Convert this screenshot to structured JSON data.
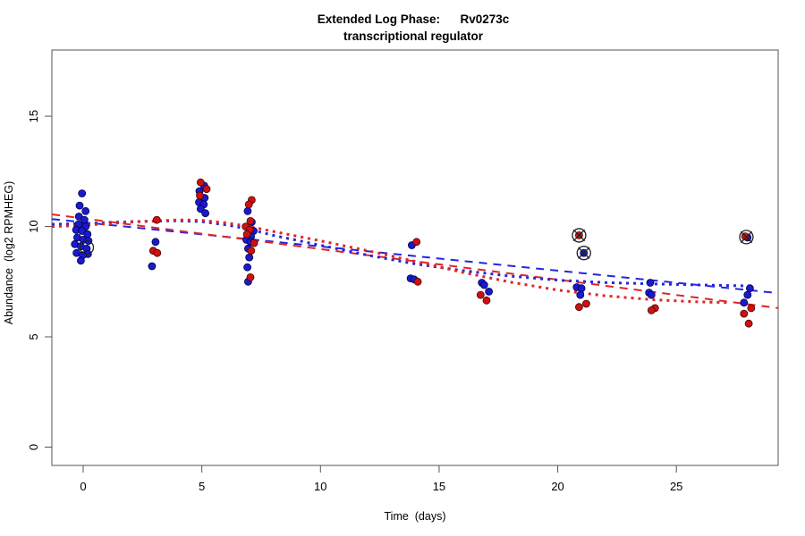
{
  "title": {
    "line1": "Extended Log Phase:      Rv0273c",
    "line2": "transcriptional regulator"
  },
  "chart_data": {
    "type": "scatter",
    "xlabel": "Time  (days)",
    "ylabel": "Abundance  (log2 RPMHEG)",
    "x_ticks": [
      0,
      5,
      10,
      15,
      20,
      25
    ],
    "y_ticks": [
      0,
      5,
      10,
      15
    ],
    "xlim": [
      -1.32,
      29.29
    ],
    "ylim": [
      -0.83,
      18.0
    ],
    "grid": false,
    "legend": "none",
    "colors": {
      "blue_point_fill": "#1a1acd",
      "blue_point_edge": "#00004d",
      "red_point_fill": "#cc1111",
      "red_point_edge": "#4d0000",
      "blue_line": "#2626dd",
      "red_line": "#e02626",
      "box_stroke": "#555555",
      "marker_stroke": "#222222"
    },
    "series": [
      {
        "name": "replicate-blue",
        "marker": "filled-circle",
        "color_key": "blue",
        "points": [
          [
            -0.05,
            11.5
          ],
          [
            -0.15,
            10.95
          ],
          [
            0.1,
            10.7
          ],
          [
            -0.18,
            10.45
          ],
          [
            0.05,
            10.3
          ],
          [
            -0.2,
            10.1
          ],
          [
            0.1,
            10.0
          ],
          [
            -0.3,
            9.85
          ],
          [
            -0.05,
            9.8
          ],
          [
            0.18,
            9.65
          ],
          [
            -0.25,
            9.5
          ],
          [
            0.0,
            9.4
          ],
          [
            0.22,
            9.35
          ],
          [
            -0.35,
            9.2
          ],
          [
            -0.1,
            9.1
          ],
          [
            0.15,
            9.0
          ],
          [
            -0.28,
            8.8
          ],
          [
            0.2,
            8.75
          ],
          [
            -0.02,
            8.7
          ],
          [
            -0.1,
            8.45
          ],
          [
            3.05,
            9.3
          ],
          [
            2.9,
            8.2
          ],
          [
            5.1,
            11.85
          ],
          [
            4.9,
            11.6
          ],
          [
            5.12,
            11.3
          ],
          [
            4.88,
            11.1
          ],
          [
            5.08,
            11.0
          ],
          [
            4.95,
            10.8
          ],
          [
            5.15,
            10.6
          ],
          [
            6.93,
            10.7
          ],
          [
            7.1,
            10.2
          ],
          [
            7.18,
            9.8
          ],
          [
            7.07,
            9.55
          ],
          [
            6.88,
            9.4
          ],
          [
            7.05,
            9.3
          ],
          [
            6.95,
            9.0
          ],
          [
            7.0,
            8.6
          ],
          [
            6.92,
            8.15
          ],
          [
            6.95,
            7.5
          ],
          [
            13.85,
            9.15
          ],
          [
            13.8,
            7.65
          ],
          [
            13.95,
            7.6
          ],
          [
            16.8,
            7.45
          ],
          [
            16.9,
            7.35
          ],
          [
            17.1,
            7.05
          ],
          [
            20.8,
            7.25
          ],
          [
            21.0,
            7.2
          ],
          [
            20.95,
            6.9
          ],
          [
            21.1,
            8.8
          ],
          [
            23.9,
            7.45
          ],
          [
            23.85,
            7.0
          ],
          [
            23.95,
            6.9
          ],
          [
            28.1,
            7.2
          ],
          [
            28.0,
            6.9
          ],
          [
            27.85,
            6.55
          ],
          [
            28.0,
            9.5
          ]
        ]
      },
      {
        "name": "replicate-red",
        "marker": "filled-circle",
        "color_key": "red",
        "points": [
          [
            3.1,
            10.3
          ],
          [
            2.95,
            8.9
          ],
          [
            3.12,
            8.8
          ],
          [
            4.95,
            12.0
          ],
          [
            5.2,
            11.7
          ],
          [
            4.92,
            11.4
          ],
          [
            7.1,
            11.2
          ],
          [
            6.98,
            11.0
          ],
          [
            7.05,
            10.25
          ],
          [
            6.85,
            10.0
          ],
          [
            7.02,
            9.85
          ],
          [
            6.9,
            9.65
          ],
          [
            7.2,
            9.25
          ],
          [
            7.08,
            8.9
          ],
          [
            7.05,
            7.7
          ],
          [
            14.05,
            9.3
          ],
          [
            14.1,
            7.5
          ],
          [
            16.75,
            6.9
          ],
          [
            17.0,
            6.65
          ],
          [
            21.2,
            6.5
          ],
          [
            20.9,
            6.35
          ],
          [
            20.9,
            9.6
          ],
          [
            24.1,
            6.3
          ],
          [
            23.95,
            6.2
          ],
          [
            28.15,
            6.3
          ],
          [
            27.85,
            6.05
          ],
          [
            28.05,
            5.6
          ],
          [
            27.9,
            9.55
          ]
        ]
      }
    ],
    "outlier_markers": [
      {
        "x": 0.15,
        "y": 9.05,
        "style": "circle"
      },
      {
        "x": 20.9,
        "y": 9.6,
        "style": "circle-x"
      },
      {
        "x": 21.1,
        "y": 8.8,
        "style": "circle-x"
      },
      {
        "x": 27.95,
        "y": 9.52,
        "style": "circle-x"
      }
    ],
    "trend_lines": [
      {
        "name": "blue-linear-fit",
        "color_key": "blue",
        "dash": "dashed",
        "points": [
          [
            -1.32,
            10.34
          ],
          [
            29.29,
            6.98
          ]
        ]
      },
      {
        "name": "red-linear-fit",
        "color_key": "red",
        "dash": "dashed",
        "points": [
          [
            -1.32,
            10.55
          ],
          [
            29.29,
            6.3
          ]
        ]
      },
      {
        "name": "blue-smooth-fit",
        "color_key": "blue",
        "dash": "dotted",
        "points": [
          [
            -1.32,
            10.1
          ],
          [
            0,
            10.13
          ],
          [
            2,
            10.22
          ],
          [
            4,
            10.26
          ],
          [
            5,
            10.22
          ],
          [
            6,
            10.08
          ],
          [
            7,
            9.88
          ],
          [
            8,
            9.6
          ],
          [
            10,
            9.15
          ],
          [
            12,
            8.7
          ],
          [
            14,
            8.3
          ],
          [
            16,
            8.0
          ],
          [
            18,
            7.75
          ],
          [
            20,
            7.57
          ],
          [
            22,
            7.46
          ],
          [
            24,
            7.4
          ],
          [
            26,
            7.35
          ],
          [
            28.3,
            7.3
          ]
        ]
      },
      {
        "name": "red-smooth-fit",
        "color_key": "red",
        "dash": "dotted",
        "points": [
          [
            -1.32,
            10.0
          ],
          [
            0,
            10.05
          ],
          [
            2,
            10.2
          ],
          [
            4,
            10.3
          ],
          [
            5,
            10.28
          ],
          [
            6,
            10.17
          ],
          [
            7,
            10.0
          ],
          [
            8,
            9.78
          ],
          [
            10,
            9.35
          ],
          [
            12,
            8.9
          ],
          [
            14,
            8.42
          ],
          [
            16,
            7.92
          ],
          [
            18,
            7.48
          ],
          [
            20,
            7.12
          ],
          [
            22,
            6.86
          ],
          [
            24,
            6.68
          ],
          [
            26,
            6.58
          ],
          [
            27.3,
            6.55
          ]
        ]
      }
    ]
  }
}
